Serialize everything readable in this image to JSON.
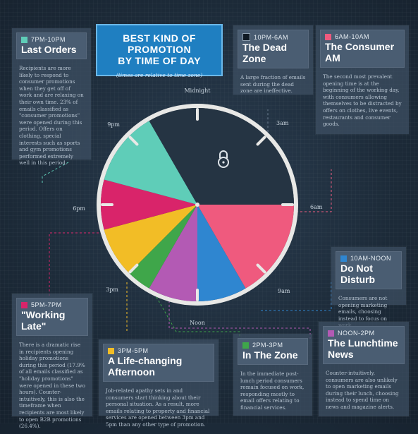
{
  "header": {
    "title_line1": "BEST KIND OF PROMOTION",
    "title_line2": "BY TIME OF DAY",
    "subtitle": "(times are relative to time zone)"
  },
  "clock_labels": {
    "midnight": "Midnight",
    "three_am": "3am",
    "six_am": "6am",
    "nine_am": "9am",
    "noon": "Noon",
    "three_pm": "3pm",
    "six_pm": "6pm",
    "nine_pm": "9pm"
  },
  "chart_data": {
    "type": "pie",
    "title": "BEST KIND OF PROMOTION BY TIME OF DAY",
    "subtitle": "(times are relative to time zone)",
    "unit": "hours (24-hour clock face)",
    "slices": [
      {
        "label": "10PM-6AM: The Dead Zone",
        "start": 22,
        "end": 30,
        "color": "#253443"
      },
      {
        "label": "6AM-10AM: The Consumer AM",
        "start": 6,
        "end": 10,
        "color": "#ef5a7e"
      },
      {
        "label": "10AM-NOON: Do Not Disturb",
        "start": 10,
        "end": 12,
        "color": "#2f86d0"
      },
      {
        "label": "NOON-2PM: The Lunchtime News",
        "start": 12,
        "end": 14,
        "color": "#b35ab4"
      },
      {
        "label": "2PM-3PM: In The Zone",
        "start": 14,
        "end": 15,
        "color": "#3fa64a"
      },
      {
        "label": "3PM-5PM: A Life-changing Afternoon",
        "start": 15,
        "end": 17,
        "color": "#f2bd26"
      },
      {
        "label": "5PM-7PM: \"Working Late\"",
        "start": 17,
        "end": 19,
        "color": "#d9246a"
      },
      {
        "label": "7PM-10PM: Last Orders",
        "start": 19,
        "end": 22,
        "color": "#5fcdb8"
      }
    ]
  },
  "panels": {
    "last_orders": {
      "time": "7PM-10PM",
      "title": "Last Orders",
      "color": "#5fcdb8",
      "body": "Recipients are more likely to respond to consumer promotions when they get off of work and are relaxing on their own time. 23% of emails classified as \"consumer promotions\" were opened during this period. Offers on clothing, special interests such as sports and gym promotions performed extremely well in this period."
    },
    "dead_zone": {
      "time": "10PM-6AM",
      "title": "The Dead Zone",
      "color": "#101a24",
      "body": "A large fraction of emails sent during the dead zone are ineffective."
    },
    "consumer_am": {
      "time": "6AM-10AM",
      "title": "The Consumer AM",
      "color": "#ef5a7e",
      "body": "The second most prevalent opening time is at the beginning of the working day, with consumers allowing themselves to be distracted by offers on clothes, live events, restaurants and consumer goods."
    },
    "do_not_disturb": {
      "time": "10AM-NOON",
      "title": "Do Not Disturb",
      "color": "#2f86d0",
      "body": "Consumers are not opening marketing emails, choosing instead to focus on work."
    },
    "working_late": {
      "time": "5PM-7PM",
      "title": "\"Working Late\"",
      "color": "#d9246a",
      "body": "There is a dramatic rise in recipients opening holiday promotions during this period (17.9% of all emails classified as \"holiday promotions\" were opened in these two hours). Counter-intuitively, this is also the timeframe when recipients are most likely to open B2B promotions (26.4%)."
    },
    "afternoon": {
      "time": "3PM-5PM",
      "title": "A Life-changing Afternoon",
      "color": "#f2bd26",
      "body": "Job-related apathy sets in and consumers start thinking about their personal situation. As a result, more emails relating to property and financial services are opened between 3pm and 5pm than any other type of promotion."
    },
    "in_the_zone": {
      "time": "2PM-3PM",
      "title": "In The Zone",
      "color": "#3fa64a",
      "body": "In the immediate post-lunch period consumers remain focused on work, responding mostly to email offers relating to financial services."
    },
    "lunchtime": {
      "time": "NOON-2PM",
      "title": "The Lunchtime News",
      "color": "#b35ab4",
      "body": "Counter-intuitively, consumers are also unlikely to open marketing emails during their lunch, choosing instead to spend time on news and magazine alerts."
    }
  }
}
